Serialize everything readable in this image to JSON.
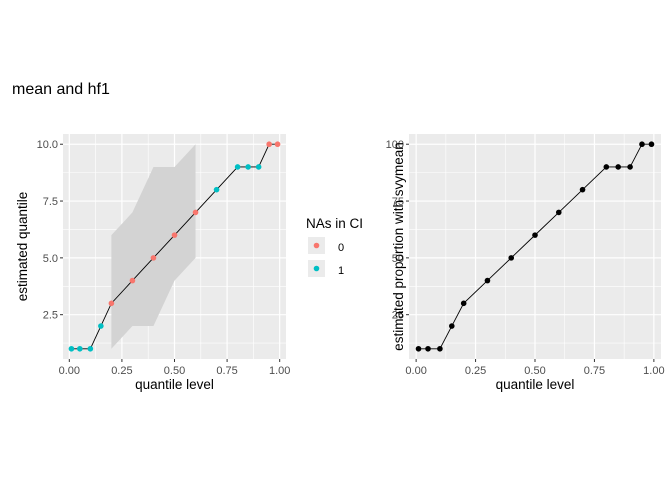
{
  "title": "mean and hf1",
  "colors": {
    "level0": "#F8766D",
    "level1": "#00BFC4",
    "panel": "#EBEBEB",
    "ribbon": "#D3D3D3",
    "grid": "#FFFFFF",
    "line": "#000000"
  },
  "chart_data": [
    {
      "type": "line",
      "xlabel": "quantile level",
      "ylabel": "estimated quantile",
      "xlim": [
        -0.03,
        1.03
      ],
      "ylim": [
        0.55,
        10.45
      ],
      "xticks": [
        0.0,
        0.25,
        0.5,
        0.75,
        1.0
      ],
      "xtick_labels": [
        "0.00",
        "0.25",
        "0.50",
        "0.75",
        "1.00"
      ],
      "yticks": [
        2.5,
        5.0,
        7.5,
        10.0
      ],
      "ytick_labels": [
        "2.5",
        "5.0",
        "7.5",
        "10.0"
      ],
      "grid": true,
      "x": [
        0.01,
        0.05,
        0.1,
        0.15,
        0.2,
        0.3,
        0.4,
        0.5,
        0.6,
        0.7,
        0.8,
        0.85,
        0.9,
        0.95,
        0.99
      ],
      "y": [
        1,
        1,
        1,
        2,
        3,
        4,
        5,
        6,
        7,
        8,
        9,
        9,
        9,
        10,
        10
      ],
      "group": [
        "1",
        "1",
        "1",
        "1",
        "0",
        "0",
        "0",
        "0",
        "0",
        "1",
        "1",
        "1",
        "1",
        "0",
        "0"
      ],
      "ribbon": {
        "x": [
          0.2,
          0.3,
          0.4,
          0.5,
          0.6
        ],
        "lower": [
          1,
          2,
          2,
          4,
          5
        ],
        "upper": [
          6,
          7,
          9,
          9,
          10
        ]
      },
      "legend": {
        "title": "NAs in CI",
        "position": "right",
        "entries": [
          "0",
          "1"
        ]
      }
    },
    {
      "type": "line",
      "xlabel": "quantile level",
      "ylabel": "estimated proportion with svymean",
      "xlim": [
        -0.03,
        1.03
      ],
      "ylim": [
        5.5,
        104.5
      ],
      "xticks": [
        0.0,
        0.25,
        0.5,
        0.75,
        1.0
      ],
      "xtick_labels": [
        "0.00",
        "0.25",
        "0.50",
        "0.75",
        "1.00"
      ],
      "yticks": [
        25,
        50,
        75,
        100
      ],
      "ytick_labels": [
        "25",
        "50",
        "75",
        "100"
      ],
      "grid": true,
      "x": [
        0.01,
        0.05,
        0.1,
        0.15,
        0.2,
        0.3,
        0.4,
        0.5,
        0.6,
        0.7,
        0.8,
        0.85,
        0.9,
        0.95,
        0.99
      ],
      "y": [
        10,
        10,
        10,
        20,
        30,
        40,
        50,
        60,
        70,
        80,
        90,
        90,
        90,
        100,
        100
      ]
    }
  ]
}
